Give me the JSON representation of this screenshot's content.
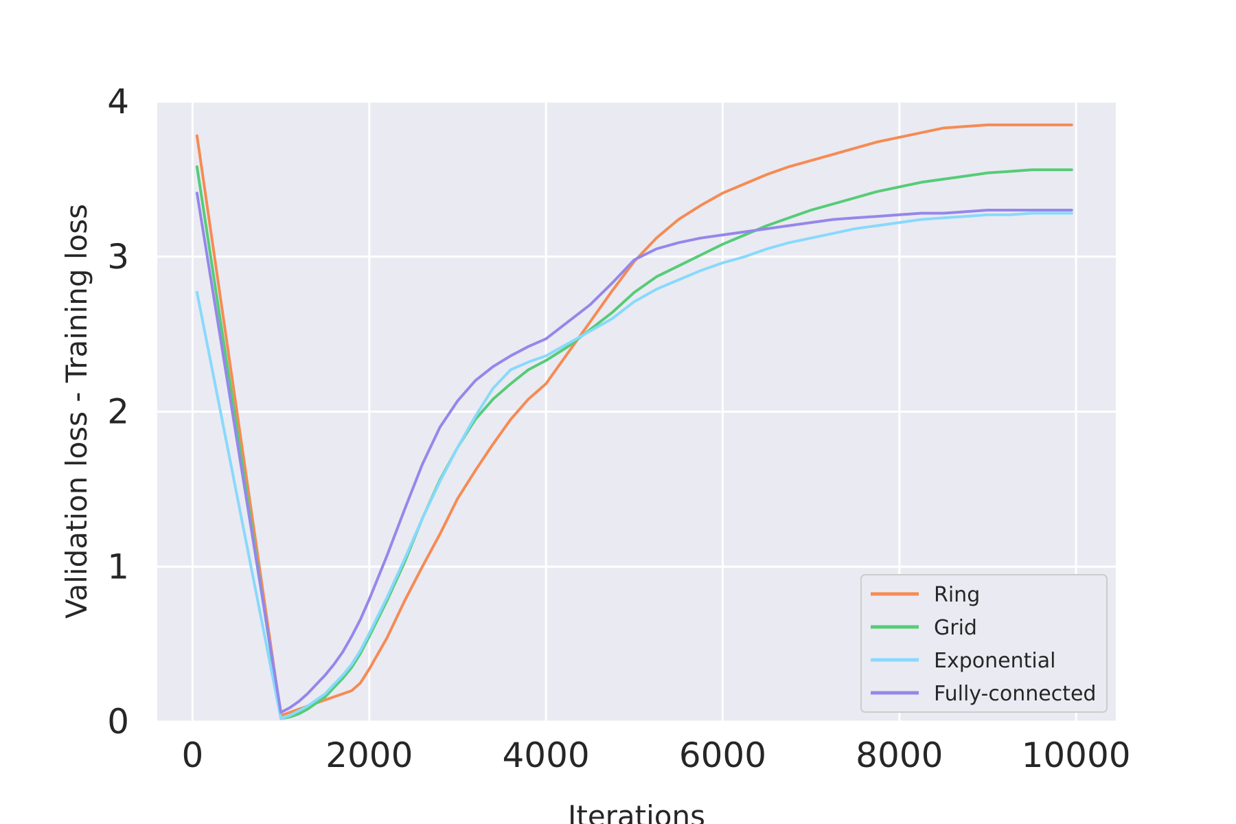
{
  "chart_data": {
    "type": "line",
    "xlabel": "Iterations",
    "ylabel": "Validation loss - Training loss",
    "xlim": [
      -400,
      10450
    ],
    "ylim": [
      0,
      4
    ],
    "xticks": [
      "0",
      "2000",
      "4000",
      "6000",
      "8000",
      "10000"
    ],
    "yticks": [
      "0",
      "1",
      "2",
      "3",
      "4"
    ],
    "grid": true,
    "legend_position": "bottom-right",
    "background": "#eaeaf2",
    "x": [
      50,
      1000,
      1100,
      1200,
      1300,
      1400,
      1500,
      1600,
      1700,
      1800,
      1900,
      2000,
      2200,
      2400,
      2600,
      2800,
      3000,
      3200,
      3400,
      3600,
      3800,
      4000,
      4250,
      4500,
      4750,
      5000,
      5250,
      5500,
      5750,
      6000,
      6250,
      6500,
      6750,
      7000,
      7250,
      7500,
      7750,
      8000,
      8250,
      8500,
      8750,
      9000,
      9250,
      9500,
      9750,
      9950
    ],
    "series": [
      {
        "name": "Ring",
        "color": "#f58b54",
        "values": [
          3.78,
          0.04,
          0.06,
          0.08,
          0.1,
          0.12,
          0.14,
          0.16,
          0.18,
          0.2,
          0.25,
          0.34,
          0.54,
          0.78,
          1.0,
          1.21,
          1.44,
          1.62,
          1.79,
          1.95,
          2.08,
          2.18,
          2.38,
          2.58,
          2.78,
          2.97,
          3.12,
          3.24,
          3.33,
          3.41,
          3.47,
          3.53,
          3.58,
          3.62,
          3.66,
          3.7,
          3.74,
          3.77,
          3.8,
          3.83,
          3.84,
          3.85,
          3.85,
          3.85,
          3.85,
          3.85
        ]
      },
      {
        "name": "Grid",
        "color": "#55cc77",
        "values": [
          3.58,
          0.02,
          0.03,
          0.05,
          0.08,
          0.12,
          0.16,
          0.22,
          0.28,
          0.35,
          0.44,
          0.55,
          0.78,
          1.03,
          1.31,
          1.56,
          1.77,
          1.95,
          2.08,
          2.18,
          2.27,
          2.33,
          2.42,
          2.53,
          2.64,
          2.77,
          2.87,
          2.94,
          3.01,
          3.08,
          3.14,
          3.2,
          3.25,
          3.3,
          3.34,
          3.38,
          3.42,
          3.45,
          3.48,
          3.5,
          3.52,
          3.54,
          3.55,
          3.56,
          3.56,
          3.56
        ]
      },
      {
        "name": "Exponential",
        "color": "#88d9fc",
        "values": [
          2.77,
          0.02,
          0.04,
          0.07,
          0.1,
          0.14,
          0.18,
          0.24,
          0.3,
          0.37,
          0.46,
          0.57,
          0.8,
          1.05,
          1.31,
          1.55,
          1.77,
          1.97,
          2.15,
          2.27,
          2.32,
          2.36,
          2.44,
          2.52,
          2.6,
          2.71,
          2.79,
          2.85,
          2.91,
          2.96,
          3.0,
          3.05,
          3.09,
          3.12,
          3.15,
          3.18,
          3.2,
          3.22,
          3.24,
          3.25,
          3.26,
          3.27,
          3.27,
          3.28,
          3.28,
          3.28
        ]
      },
      {
        "name": "Fully-connected",
        "color": "#9487ea",
        "values": [
          3.41,
          0.06,
          0.09,
          0.13,
          0.18,
          0.24,
          0.3,
          0.37,
          0.45,
          0.55,
          0.66,
          0.79,
          1.07,
          1.37,
          1.66,
          1.9,
          2.07,
          2.2,
          2.29,
          2.36,
          2.42,
          2.47,
          2.58,
          2.69,
          2.83,
          2.98,
          3.05,
          3.09,
          3.12,
          3.14,
          3.16,
          3.18,
          3.2,
          3.22,
          3.24,
          3.25,
          3.26,
          3.27,
          3.28,
          3.28,
          3.29,
          3.3,
          3.3,
          3.3,
          3.3,
          3.3
        ]
      }
    ]
  }
}
